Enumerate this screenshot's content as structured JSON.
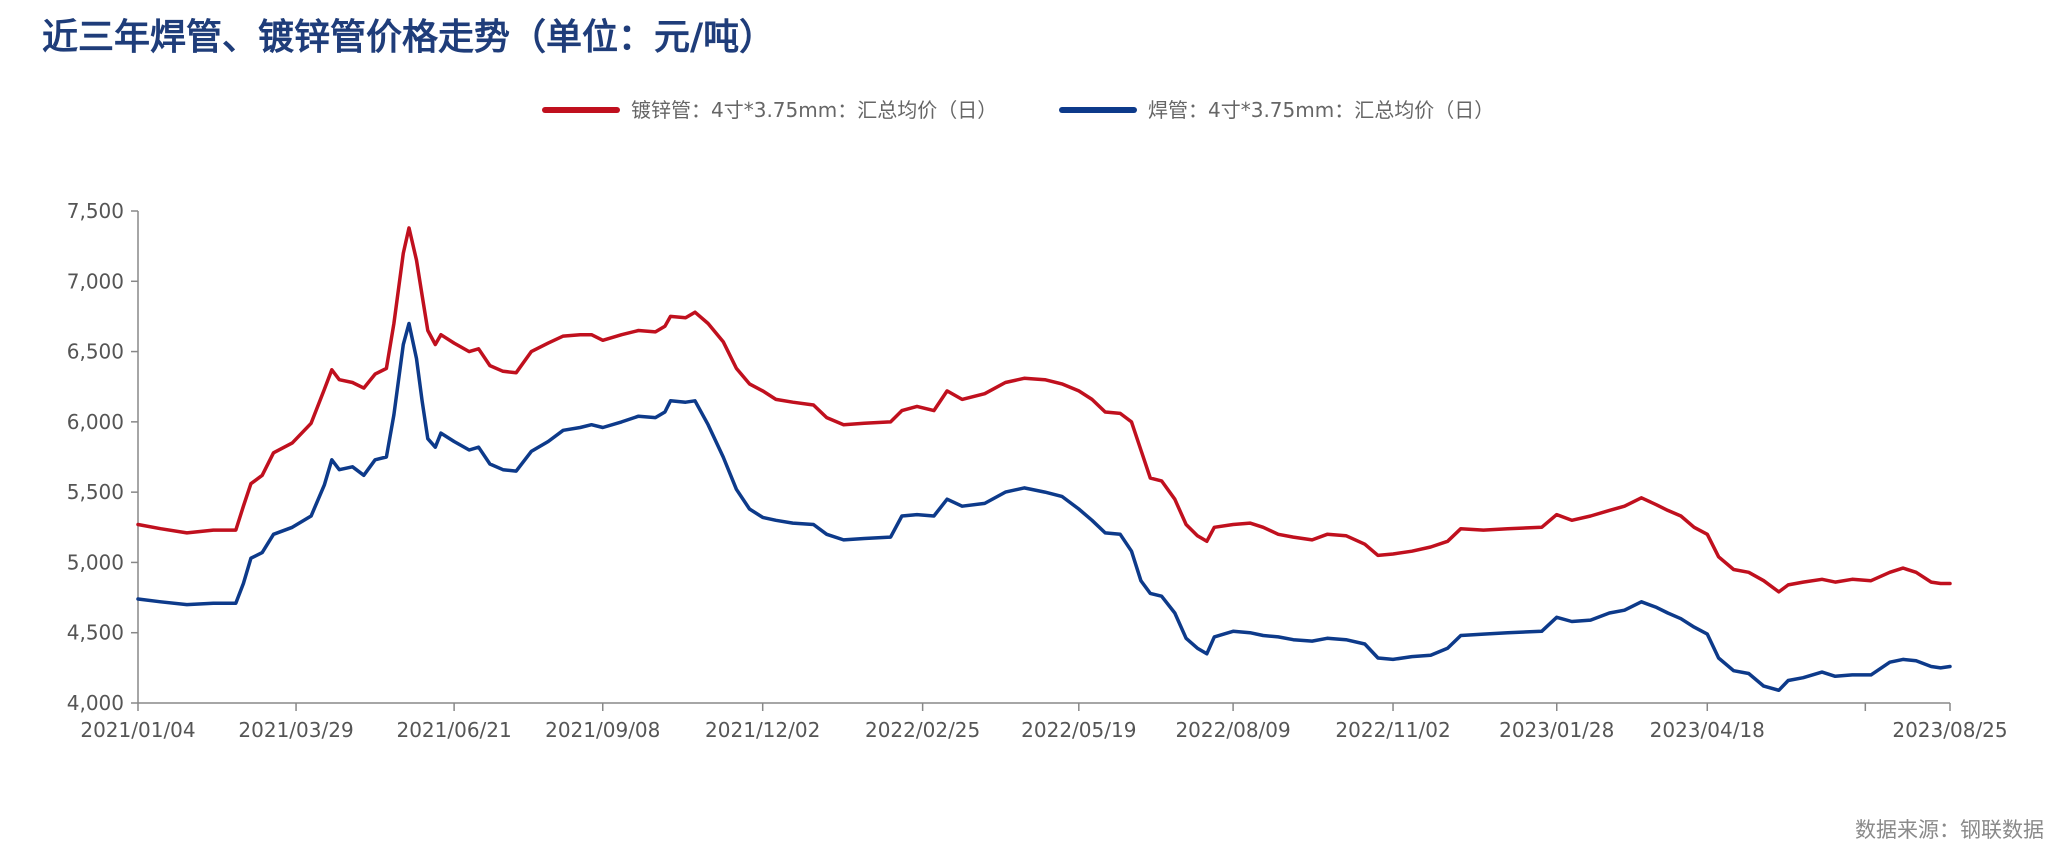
{
  "page": {
    "title": "近三年焊管、镀锌管价格走势（单位：元/吨）",
    "source": "数据来源：钢联数据"
  },
  "chart_data": {
    "type": "line",
    "title": "近三年焊管、镀锌管价格走势（单位：元/吨）",
    "xlabel": "",
    "ylabel": "",
    "ylim": [
      4000,
      7500
    ],
    "yticks": [
      4000,
      4500,
      5000,
      5500,
      6000,
      6500,
      7000,
      7500
    ],
    "ytick_labels": [
      "4,000",
      "4,500",
      "5,000",
      "5,500",
      "6,000",
      "6,500",
      "7,000",
      "7,500"
    ],
    "xlim": [
      "2021-01-04",
      "2023-08-25"
    ],
    "xtick_labels": [
      "2021/01/04",
      "2021/03/29",
      "2021/06/21",
      "2021/09/08",
      "2021/12/02",
      "2022/02/25",
      "2022/05/19",
      "2022/08/09",
      "2022/11/02",
      "2023/01/28",
      "2023/04/18",
      "2023/08/25"
    ],
    "xtick_dates": [
      "2021-01-04",
      "2021-03-29",
      "2021-06-21",
      "2021-09-08",
      "2021-12-02",
      "2022-02-25",
      "2022-05-19",
      "2022-08-09",
      "2022-11-02",
      "2023-01-28",
      "2023-04-18",
      "2023-08-25"
    ],
    "extra_tick_dates": [
      "2023-07-11"
    ],
    "legend_position": "top-center",
    "grid": false,
    "series": [
      {
        "name": "镀锌管：4寸*3.75mm：汇总均价（日）",
        "color": "#c0101e",
        "points": [
          [
            "2021-01-04",
            5270
          ],
          [
            "2021-01-16",
            5240
          ],
          [
            "2021-01-30",
            5210
          ],
          [
            "2021-02-13",
            5230
          ],
          [
            "2021-02-25",
            5230
          ],
          [
            "2021-03-01",
            5400
          ],
          [
            "2021-03-05",
            5560
          ],
          [
            "2021-03-11",
            5620
          ],
          [
            "2021-03-17",
            5780
          ],
          [
            "2021-03-27",
            5850
          ],
          [
            "2021-04-06",
            5990
          ],
          [
            "2021-04-13",
            6230
          ],
          [
            "2021-04-17",
            6370
          ],
          [
            "2021-04-21",
            6300
          ],
          [
            "2021-04-28",
            6280
          ],
          [
            "2021-05-04",
            6240
          ],
          [
            "2021-05-10",
            6340
          ],
          [
            "2021-05-16",
            6380
          ],
          [
            "2021-05-20",
            6700
          ],
          [
            "2021-05-25",
            7200
          ],
          [
            "2021-05-28",
            7380
          ],
          [
            "2021-06-01",
            7150
          ],
          [
            "2021-06-04",
            6900
          ],
          [
            "2021-06-07",
            6650
          ],
          [
            "2021-06-11",
            6550
          ],
          [
            "2021-06-14",
            6620
          ],
          [
            "2021-06-21",
            6560
          ],
          [
            "2021-06-29",
            6500
          ],
          [
            "2021-07-04",
            6520
          ],
          [
            "2021-07-10",
            6400
          ],
          [
            "2021-07-17",
            6360
          ],
          [
            "2021-07-24",
            6350
          ],
          [
            "2021-08-01",
            6500
          ],
          [
            "2021-08-10",
            6560
          ],
          [
            "2021-08-18",
            6610
          ],
          [
            "2021-08-27",
            6620
          ],
          [
            "2021-09-02",
            6620
          ],
          [
            "2021-09-08",
            6580
          ],
          [
            "2021-09-18",
            6620
          ],
          [
            "2021-09-27",
            6650
          ],
          [
            "2021-10-06",
            6640
          ],
          [
            "2021-10-11",
            6680
          ],
          [
            "2021-10-14",
            6750
          ],
          [
            "2021-10-22",
            6740
          ],
          [
            "2021-10-27",
            6780
          ],
          [
            "2021-11-03",
            6700
          ],
          [
            "2021-11-11",
            6570
          ],
          [
            "2021-11-18",
            6380
          ],
          [
            "2021-11-25",
            6270
          ],
          [
            "2021-12-02",
            6220
          ],
          [
            "2021-12-09",
            6160
          ],
          [
            "2021-12-18",
            6140
          ],
          [
            "2021-12-29",
            6120
          ],
          [
            "2022-01-05",
            6030
          ],
          [
            "2022-01-14",
            5980
          ],
          [
            "2022-01-25",
            5990
          ],
          [
            "2022-02-08",
            6000
          ],
          [
            "2022-02-14",
            6080
          ],
          [
            "2022-02-22",
            6110
          ],
          [
            "2022-03-03",
            6080
          ],
          [
            "2022-03-10",
            6220
          ],
          [
            "2022-03-18",
            6160
          ],
          [
            "2022-03-30",
            6200
          ],
          [
            "2022-04-10",
            6280
          ],
          [
            "2022-04-20",
            6310
          ],
          [
            "2022-05-01",
            6300
          ],
          [
            "2022-05-10",
            6270
          ],
          [
            "2022-05-19",
            6220
          ],
          [
            "2022-05-26",
            6160
          ],
          [
            "2022-06-02",
            6070
          ],
          [
            "2022-06-10",
            6060
          ],
          [
            "2022-06-16",
            6000
          ],
          [
            "2022-06-21",
            5800
          ],
          [
            "2022-06-26",
            5600
          ],
          [
            "2022-07-02",
            5580
          ],
          [
            "2022-07-09",
            5450
          ],
          [
            "2022-07-15",
            5270
          ],
          [
            "2022-07-21",
            5190
          ],
          [
            "2022-07-26",
            5150
          ],
          [
            "2022-07-30",
            5250
          ],
          [
            "2022-08-09",
            5270
          ],
          [
            "2022-08-18",
            5280
          ],
          [
            "2022-08-25",
            5250
          ],
          [
            "2022-09-02",
            5200
          ],
          [
            "2022-09-10",
            5180
          ],
          [
            "2022-09-20",
            5160
          ],
          [
            "2022-09-28",
            5200
          ],
          [
            "2022-10-08",
            5190
          ],
          [
            "2022-10-18",
            5130
          ],
          [
            "2022-10-25",
            5050
          ],
          [
            "2022-11-02",
            5060
          ],
          [
            "2022-11-12",
            5080
          ],
          [
            "2022-11-22",
            5110
          ],
          [
            "2022-12-01",
            5150
          ],
          [
            "2022-12-08",
            5240
          ],
          [
            "2022-12-20",
            5230
          ],
          [
            "2023-01-02",
            5240
          ],
          [
            "2023-01-20",
            5250
          ],
          [
            "2023-01-28",
            5340
          ],
          [
            "2023-02-05",
            5300
          ],
          [
            "2023-02-15",
            5330
          ],
          [
            "2023-02-25",
            5370
          ],
          [
            "2023-03-05",
            5400
          ],
          [
            "2023-03-14",
            5460
          ],
          [
            "2023-03-22",
            5410
          ],
          [
            "2023-03-28",
            5370
          ],
          [
            "2023-04-04",
            5330
          ],
          [
            "2023-04-11",
            5250
          ],
          [
            "2023-04-18",
            5200
          ],
          [
            "2023-04-24",
            5040
          ],
          [
            "2023-05-02",
            4950
          ],
          [
            "2023-05-10",
            4930
          ],
          [
            "2023-05-18",
            4870
          ],
          [
            "2023-05-26",
            4790
          ],
          [
            "2023-05-31",
            4840
          ],
          [
            "2023-06-08",
            4860
          ],
          [
            "2023-06-18",
            4880
          ],
          [
            "2023-06-25",
            4860
          ],
          [
            "2023-07-04",
            4880
          ],
          [
            "2023-07-14",
            4870
          ],
          [
            "2023-07-24",
            4930
          ],
          [
            "2023-07-31",
            4960
          ],
          [
            "2023-08-07",
            4930
          ],
          [
            "2023-08-15",
            4860
          ],
          [
            "2023-08-20",
            4850
          ],
          [
            "2023-08-25",
            4850
          ]
        ]
      },
      {
        "name": "焊管：4寸*3.75mm：汇总均价（日）",
        "color": "#0d3a8a",
        "points": [
          [
            "2021-01-04",
            4740
          ],
          [
            "2021-01-16",
            4720
          ],
          [
            "2021-01-30",
            4700
          ],
          [
            "2021-02-13",
            4710
          ],
          [
            "2021-02-25",
            4710
          ],
          [
            "2021-03-01",
            4850
          ],
          [
            "2021-03-05",
            5030
          ],
          [
            "2021-03-11",
            5070
          ],
          [
            "2021-03-17",
            5200
          ],
          [
            "2021-03-27",
            5250
          ],
          [
            "2021-04-06",
            5330
          ],
          [
            "2021-04-13",
            5550
          ],
          [
            "2021-04-17",
            5730
          ],
          [
            "2021-04-21",
            5660
          ],
          [
            "2021-04-28",
            5680
          ],
          [
            "2021-05-04",
            5620
          ],
          [
            "2021-05-10",
            5730
          ],
          [
            "2021-05-16",
            5750
          ],
          [
            "2021-05-20",
            6050
          ],
          [
            "2021-05-25",
            6550
          ],
          [
            "2021-05-28",
            6700
          ],
          [
            "2021-06-01",
            6450
          ],
          [
            "2021-06-04",
            6150
          ],
          [
            "2021-06-07",
            5880
          ],
          [
            "2021-06-11",
            5820
          ],
          [
            "2021-06-14",
            5920
          ],
          [
            "2021-06-21",
            5860
          ],
          [
            "2021-06-29",
            5800
          ],
          [
            "2021-07-04",
            5820
          ],
          [
            "2021-07-10",
            5700
          ],
          [
            "2021-07-17",
            5660
          ],
          [
            "2021-07-24",
            5650
          ],
          [
            "2021-08-01",
            5790
          ],
          [
            "2021-08-10",
            5860
          ],
          [
            "2021-08-18",
            5940
          ],
          [
            "2021-08-27",
            5960
          ],
          [
            "2021-09-02",
            5980
          ],
          [
            "2021-09-08",
            5960
          ],
          [
            "2021-09-18",
            6000
          ],
          [
            "2021-09-27",
            6040
          ],
          [
            "2021-10-06",
            6030
          ],
          [
            "2021-10-11",
            6070
          ],
          [
            "2021-10-14",
            6150
          ],
          [
            "2021-10-22",
            6140
          ],
          [
            "2021-10-27",
            6150
          ],
          [
            "2021-11-03",
            5980
          ],
          [
            "2021-11-11",
            5750
          ],
          [
            "2021-11-18",
            5520
          ],
          [
            "2021-11-25",
            5380
          ],
          [
            "2021-12-02",
            5320
          ],
          [
            "2021-12-09",
            5300
          ],
          [
            "2021-12-18",
            5280
          ],
          [
            "2021-12-29",
            5270
          ],
          [
            "2022-01-05",
            5200
          ],
          [
            "2022-01-14",
            5160
          ],
          [
            "2022-01-25",
            5170
          ],
          [
            "2022-02-08",
            5180
          ],
          [
            "2022-02-14",
            5330
          ],
          [
            "2022-02-22",
            5340
          ],
          [
            "2022-03-03",
            5330
          ],
          [
            "2022-03-10",
            5450
          ],
          [
            "2022-03-18",
            5400
          ],
          [
            "2022-03-30",
            5420
          ],
          [
            "2022-04-10",
            5500
          ],
          [
            "2022-04-20",
            5530
          ],
          [
            "2022-05-01",
            5500
          ],
          [
            "2022-05-10",
            5470
          ],
          [
            "2022-05-19",
            5380
          ],
          [
            "2022-05-26",
            5300
          ],
          [
            "2022-06-02",
            5210
          ],
          [
            "2022-06-10",
            5200
          ],
          [
            "2022-06-16",
            5080
          ],
          [
            "2022-06-21",
            4870
          ],
          [
            "2022-06-26",
            4780
          ],
          [
            "2022-07-02",
            4760
          ],
          [
            "2022-07-09",
            4640
          ],
          [
            "2022-07-15",
            4460
          ],
          [
            "2022-07-21",
            4390
          ],
          [
            "2022-07-26",
            4350
          ],
          [
            "2022-07-30",
            4470
          ],
          [
            "2022-08-09",
            4510
          ],
          [
            "2022-08-18",
            4500
          ],
          [
            "2022-08-25",
            4480
          ],
          [
            "2022-09-02",
            4470
          ],
          [
            "2022-09-10",
            4450
          ],
          [
            "2022-09-20",
            4440
          ],
          [
            "2022-09-28",
            4460
          ],
          [
            "2022-10-08",
            4450
          ],
          [
            "2022-10-18",
            4420
          ],
          [
            "2022-10-25",
            4320
          ],
          [
            "2022-11-02",
            4310
          ],
          [
            "2022-11-12",
            4330
          ],
          [
            "2022-11-22",
            4340
          ],
          [
            "2022-12-01",
            4390
          ],
          [
            "2022-12-08",
            4480
          ],
          [
            "2022-12-20",
            4490
          ],
          [
            "2023-01-02",
            4500
          ],
          [
            "2023-01-20",
            4510
          ],
          [
            "2023-01-28",
            4610
          ],
          [
            "2023-02-05",
            4580
          ],
          [
            "2023-02-15",
            4590
          ],
          [
            "2023-02-25",
            4640
          ],
          [
            "2023-03-05",
            4660
          ],
          [
            "2023-03-14",
            4720
          ],
          [
            "2023-03-22",
            4680
          ],
          [
            "2023-03-28",
            4640
          ],
          [
            "2023-04-04",
            4600
          ],
          [
            "2023-04-11",
            4540
          ],
          [
            "2023-04-18",
            4490
          ],
          [
            "2023-04-24",
            4320
          ],
          [
            "2023-05-02",
            4230
          ],
          [
            "2023-05-10",
            4210
          ],
          [
            "2023-05-18",
            4120
          ],
          [
            "2023-05-26",
            4090
          ],
          [
            "2023-05-31",
            4160
          ],
          [
            "2023-06-08",
            4180
          ],
          [
            "2023-06-18",
            4220
          ],
          [
            "2023-06-25",
            4190
          ],
          [
            "2023-07-04",
            4200
          ],
          [
            "2023-07-14",
            4200
          ],
          [
            "2023-07-24",
            4290
          ],
          [
            "2023-07-31",
            4310
          ],
          [
            "2023-08-07",
            4300
          ],
          [
            "2023-08-15",
            4260
          ],
          [
            "2023-08-20",
            4250
          ],
          [
            "2023-08-25",
            4260
          ]
        ]
      }
    ]
  }
}
